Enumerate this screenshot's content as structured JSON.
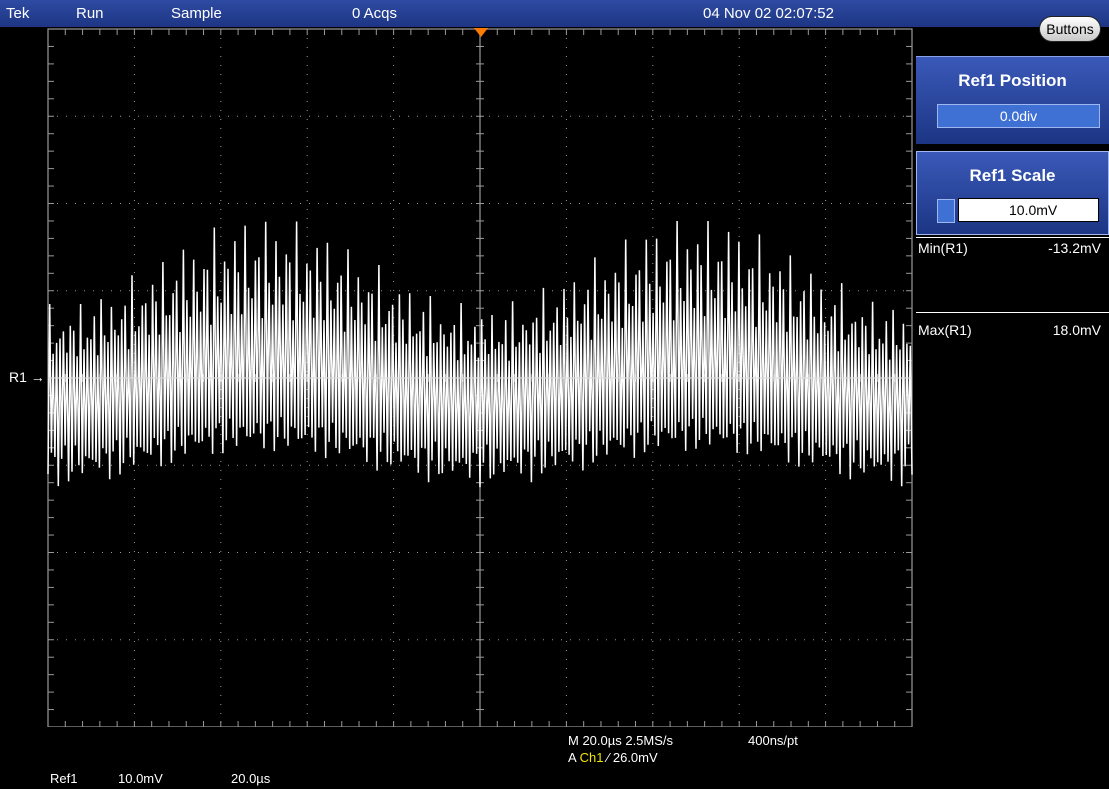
{
  "status_bar": {
    "brand": "Tek",
    "run_state": "Run",
    "acq_mode": "Sample",
    "acquisitions": "0 Acqs",
    "datetime": "04 Nov 02 02:07:52"
  },
  "buttons_label": "Buttons",
  "ref1_position": {
    "title": "Ref1 Position",
    "value": "0.0div"
  },
  "ref1_scale": {
    "title": "Ref1 Scale",
    "value": "10.0mV"
  },
  "measurements": [
    {
      "label": "Min(R1)",
      "value": "-13.2mV"
    },
    {
      "label": "Max(R1)",
      "value": "18.0mV"
    }
  ],
  "ref_marker": "R1",
  "horizontal": {
    "timebase": "M 20.0µs 2.5MS/s",
    "resolution": "400ns/pt"
  },
  "trigger": {
    "source_prefix": "A",
    "channel": "Ch1",
    "slope_level": "⁄ 26.0mV"
  },
  "ref_readout": {
    "name": "Ref1",
    "scale": "10.0mV",
    "time": "20.0µs"
  },
  "colors": {
    "trace": "#ffffff",
    "graticule": "#9a9a9a",
    "trigger_marker": "#ff7a00",
    "channel": "#f2e600",
    "panel": "#2a47a6"
  },
  "chart_data": {
    "type": "line",
    "x_divisions": 10,
    "y_divisions": 8,
    "x_per_div": "20.0µs",
    "y_per_div": "10.0mV",
    "y_min_mV": -13.2,
    "y_max_mV": 18.0,
    "cycles_across_screen": 84,
    "envelope_periods": 2
  }
}
